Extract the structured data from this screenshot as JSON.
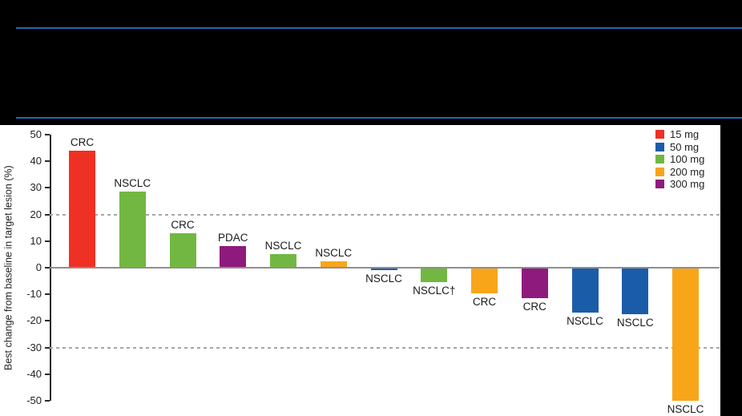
{
  "window": {
    "background": "#000000"
  },
  "header": {
    "rule_color": "#2A65AE"
  },
  "chart_data": {
    "type": "bar",
    "subtype": "waterfall",
    "title": "",
    "xlabel": "",
    "ylabel": "Best change from baseline in target lesion (%)",
    "ylim": [
      -50,
      50
    ],
    "yticks": [
      50,
      40,
      30,
      20,
      10,
      0,
      -10,
      -20,
      -30,
      -40,
      -50
    ],
    "reference_lines": [
      20,
      -30
    ],
    "grid": "horizontal dashed reference lines at +20 and -30 only",
    "zero_line": true,
    "legend": {
      "position": "top-right",
      "entries": [
        {
          "label": "15 mg",
          "color": "#EE3124"
        },
        {
          "label": "50 mg",
          "color": "#1B5CA8"
        },
        {
          "label": "100 mg",
          "color": "#72B742"
        },
        {
          "label": "200 mg",
          "color": "#F9A51A"
        },
        {
          "label": "300 mg",
          "color": "#8F1A7D"
        }
      ]
    },
    "bars": [
      {
        "label": "CRC",
        "value": 44,
        "dose": "15 mg"
      },
      {
        "label": "NSCLC",
        "value": 28.5,
        "dose": "100 mg"
      },
      {
        "label": "CRC",
        "value": 13,
        "dose": "100 mg"
      },
      {
        "label": "PDAC",
        "value": 8,
        "dose": "300 mg"
      },
      {
        "label": "NSCLC",
        "value": 5,
        "dose": "100 mg"
      },
      {
        "label": "NSCLC",
        "value": 2.5,
        "dose": "200 mg"
      },
      {
        "label": "NSCLC",
        "value": -1,
        "dose": "50 mg"
      },
      {
        "label": "NSCLC†",
        "value": -5.5,
        "dose": "100 mg"
      },
      {
        "label": "CRC",
        "value": -9.5,
        "dose": "200 mg"
      },
      {
        "label": "CRC",
        "value": -11.5,
        "dose": "300 mg"
      },
      {
        "label": "NSCLC",
        "value": -17,
        "dose": "50 mg"
      },
      {
        "label": "NSCLC",
        "value": -17.5,
        "dose": "50 mg"
      },
      {
        "label": "NSCLC",
        "value": -50,
        "dose": "200 mg"
      }
    ]
  }
}
